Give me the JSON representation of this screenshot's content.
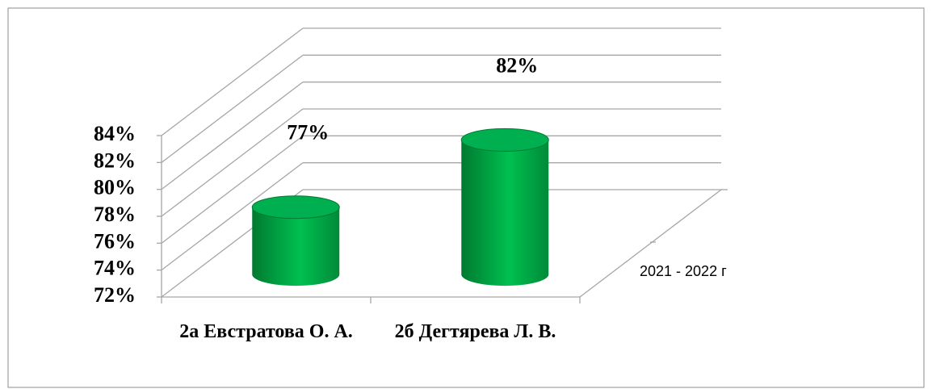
{
  "chart_data": {
    "type": "bar3d",
    "categories": [
      "2а Евстратова О. А.",
      "2б Дегтярева Л. В."
    ],
    "series": [
      {
        "name": "2021 - 2022 г",
        "color": "#00b050",
        "values": [
          77,
          82
        ],
        "value_labels": [
          "77%",
          "82%"
        ]
      }
    ],
    "ylim": [
      72,
      84
    ],
    "yticks": [
      {
        "value": 72,
        "label": "72%"
      },
      {
        "value": 74,
        "label": "74%"
      },
      {
        "value": 76,
        "label": "76%"
      },
      {
        "value": 78,
        "label": "78%"
      },
      {
        "value": 80,
        "label": "80%"
      },
      {
        "value": 82,
        "label": "82%"
      },
      {
        "value": 84,
        "label": "84%"
      }
    ],
    "grid": true,
    "legend": "right"
  }
}
